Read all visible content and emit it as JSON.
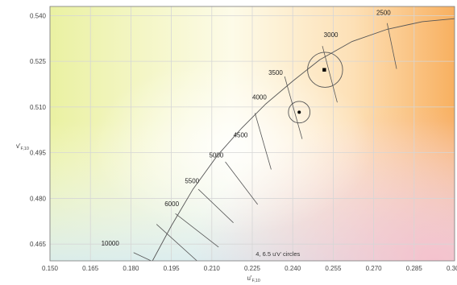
{
  "chart_data": {
    "type": "scatter",
    "title": "",
    "xlabel": {
      "main": "u'",
      "sub": "F,10"
    },
    "ylabel": {
      "main": "v'",
      "sub": "F,10"
    },
    "xlim": [
      0.15,
      0.3
    ],
    "ylim": [
      0.4595,
      0.543
    ],
    "grid": true,
    "x_ticks": [
      0.15,
      0.165,
      0.18,
      0.195,
      0.21,
      0.225,
      0.24,
      0.255,
      0.27,
      0.285,
      0.3
    ],
    "x_tick_labels": [
      "0.150",
      "0.165",
      "0.180",
      "0.195",
      "0.210",
      "0.225",
      "0.240",
      "0.255",
      "0.270",
      "0.285",
      "0.300"
    ],
    "y_ticks": [
      0.465,
      0.48,
      0.495,
      0.51,
      0.525,
      0.54
    ],
    "y_tick_labels": [
      "0.465",
      "0.480",
      "0.495",
      "0.510",
      "0.525",
      "0.540"
    ],
    "planckian_locus": {
      "x": [
        0.188,
        0.195,
        0.203,
        0.212,
        0.221,
        0.23,
        0.24,
        0.25,
        0.262,
        0.275,
        0.288,
        0.3
      ],
      "y": [
        0.4595,
        0.471,
        0.483,
        0.494,
        0.503,
        0.511,
        0.5185,
        0.5255,
        0.5315,
        0.5355,
        0.538,
        0.539
      ]
    },
    "cct_isotherms": [
      {
        "label": "10000",
        "x1": 0.1875,
        "y1": 0.4595,
        "x2": 0.181,
        "y2": 0.4622,
        "lx": 0.169,
        "ly": 0.4645
      },
      {
        "label": "6000",
        "x1": 0.1895,
        "y1": 0.4715,
        "x2": 0.2045,
        "y2": 0.4595,
        "lx": 0.1925,
        "ly": 0.4775
      },
      {
        "label": "5500",
        "x1": 0.1965,
        "y1": 0.475,
        "x2": 0.2125,
        "y2": 0.464,
        "lx": 0.2,
        "ly": 0.485
      },
      {
        "label": "5000",
        "x1": 0.205,
        "y1": 0.483,
        "x2": 0.218,
        "y2": 0.472,
        "lx": 0.209,
        "ly": 0.4935
      },
      {
        "label": "4500",
        "x1": 0.215,
        "y1": 0.492,
        "x2": 0.227,
        "y2": 0.478,
        "lx": 0.218,
        "ly": 0.5
      },
      {
        "label": "4000",
        "x1": 0.226,
        "y1": 0.508,
        "x2": 0.232,
        "y2": 0.4895,
        "lx": 0.225,
        "ly": 0.5125
      },
      {
        "label": "3500",
        "x1": 0.237,
        "y1": 0.52,
        "x2": 0.2435,
        "y2": 0.4995,
        "lx": 0.231,
        "ly": 0.5205
      },
      {
        "label": "3000",
        "x1": 0.251,
        "y1": 0.53,
        "x2": 0.2565,
        "y2": 0.5115,
        "lx": 0.2515,
        "ly": 0.533
      },
      {
        "label": "2500",
        "x1": 0.275,
        "y1": 0.5375,
        "x2": 0.2785,
        "y2": 0.5225,
        "lx": 0.271,
        "ly": 0.5402
      }
    ],
    "points": [
      {
        "x": 0.2424,
        "y": 0.5083,
        "marker": "circle"
      },
      {
        "x": 0.2517,
        "y": 0.5222,
        "marker": "square"
      }
    ],
    "circles": [
      {
        "cx": 0.2424,
        "cy": 0.5083,
        "r": 0.004
      },
      {
        "cx": 0.252,
        "cy": 0.5222,
        "r": 0.0065
      }
    ],
    "annotation": "4, 6.5 u'v' circles",
    "colors": {
      "grid": "#d6d6d6",
      "locus": "#555555",
      "isotherm": "#555555",
      "marker": "#000000",
      "frame": "#7a7a7a"
    }
  }
}
